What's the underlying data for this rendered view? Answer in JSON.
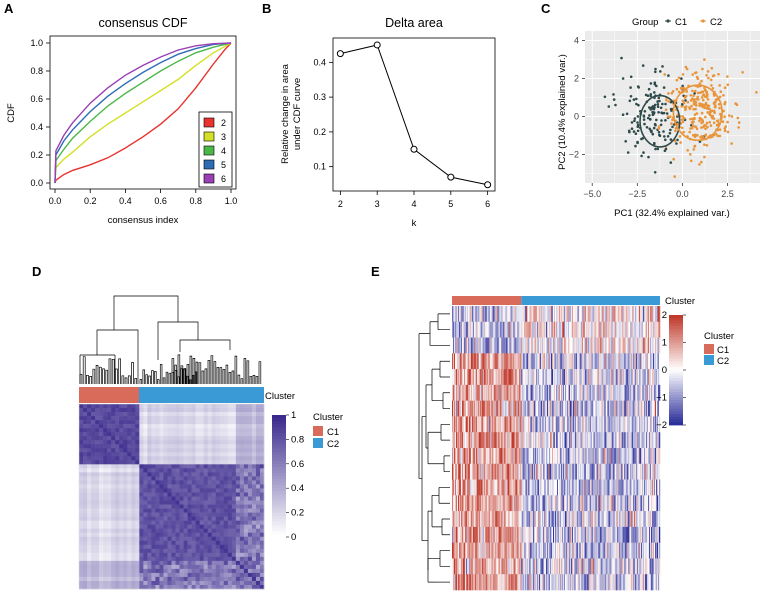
{
  "panels": {
    "A": "A",
    "B": "B",
    "C": "C",
    "D": "D",
    "E": "E"
  },
  "chart_data": [
    {
      "id": "A",
      "type": "line",
      "title": "consensus CDF",
      "xlabel": "consensus index",
      "ylabel": "CDF",
      "xlim": [
        0,
        1
      ],
      "ylim": [
        0,
        1
      ],
      "xticks": [
        "0.0",
        "0.2",
        "0.4",
        "0.6",
        "0.8",
        "1.0"
      ],
      "yticks": [
        "0.0",
        "0.2",
        "0.4",
        "0.6",
        "0.8",
        "1.0"
      ],
      "legend_position": "bottom-right",
      "series": [
        {
          "name": "2",
          "color": "#e8322e",
          "x": [
            0,
            0.005,
            0.05,
            0.1,
            0.2,
            0.3,
            0.4,
            0.5,
            0.6,
            0.7,
            0.8,
            0.9,
            0.97,
            1.0
          ],
          "y": [
            0,
            0.02,
            0.06,
            0.09,
            0.13,
            0.18,
            0.25,
            0.33,
            0.42,
            0.53,
            0.68,
            0.85,
            0.96,
            1.0
          ]
        },
        {
          "name": "3",
          "color": "#d4e026",
          "x": [
            0,
            0.005,
            0.05,
            0.1,
            0.2,
            0.3,
            0.4,
            0.5,
            0.6,
            0.7,
            0.8,
            0.9,
            1.0
          ],
          "y": [
            0,
            0.11,
            0.17,
            0.22,
            0.33,
            0.42,
            0.5,
            0.58,
            0.66,
            0.74,
            0.84,
            0.93,
            1.0
          ]
        },
        {
          "name": "4",
          "color": "#4cb748",
          "x": [
            0,
            0.005,
            0.05,
            0.1,
            0.2,
            0.3,
            0.4,
            0.5,
            0.6,
            0.7,
            0.8,
            0.9,
            1.0
          ],
          "y": [
            0,
            0.16,
            0.24,
            0.32,
            0.44,
            0.55,
            0.64,
            0.72,
            0.8,
            0.87,
            0.93,
            0.97,
            1.0
          ]
        },
        {
          "name": "5",
          "color": "#2e6db4",
          "x": [
            0,
            0.005,
            0.05,
            0.1,
            0.2,
            0.3,
            0.4,
            0.5,
            0.6,
            0.7,
            0.8,
            0.9,
            1.0
          ],
          "y": [
            0,
            0.2,
            0.3,
            0.38,
            0.51,
            0.62,
            0.71,
            0.79,
            0.86,
            0.92,
            0.96,
            0.99,
            1.0
          ]
        },
        {
          "name": "6",
          "color": "#9b3fb5",
          "x": [
            0,
            0.005,
            0.05,
            0.1,
            0.2,
            0.3,
            0.4,
            0.5,
            0.6,
            0.7,
            0.8,
            0.9,
            1.0
          ],
          "y": [
            0,
            0.23,
            0.34,
            0.43,
            0.57,
            0.68,
            0.77,
            0.84,
            0.9,
            0.95,
            0.98,
            0.995,
            1.0
          ]
        }
      ]
    },
    {
      "id": "B",
      "type": "line",
      "title": "Delta area",
      "xlabel": "k",
      "ylabel": "Relative change in area under CDF curve",
      "ylabel_lines": [
        "Relative change in area",
        "under CDF curve"
      ],
      "xlim": [
        1.8,
        6.2
      ],
      "ylim": [
        0.03,
        0.47
      ],
      "xticks": [
        "2",
        "3",
        "4",
        "5",
        "6"
      ],
      "yticks": [
        "0.1",
        "0.2",
        "0.3",
        "0.4"
      ],
      "x": [
        2,
        3,
        4,
        5,
        6
      ],
      "y": [
        0.425,
        0.45,
        0.15,
        0.07,
        0.048
      ]
    },
    {
      "id": "C",
      "type": "scatter",
      "xlabel": "PC1 (32.4% explained var.)",
      "ylabel": "PC2 (10.4% explained var.)",
      "xlim": [
        -5.4,
        4.3
      ],
      "ylim": [
        -3.5,
        4.5
      ],
      "xticks": [
        "-5.0",
        "-2.5",
        "0.0",
        "2.5"
      ],
      "yticks": [
        "-2",
        "0",
        "2",
        "4"
      ],
      "legend_title": "Group",
      "legend_position": "top",
      "series": [
        {
          "name": "C1",
          "color": "#2f4a4a",
          "n": 160,
          "center": [
            -1.6,
            0.0
          ],
          "spread": [
            1.0,
            1.0
          ]
        },
        {
          "name": "C2",
          "color": "#e8943a",
          "n": 300,
          "center": [
            1.0,
            0.3
          ],
          "spread": [
            0.95,
            1.05
          ]
        }
      ],
      "ellipses": [
        {
          "group": "C1",
          "center": [
            -1.25,
            -0.25
          ],
          "radii": [
            1.1,
            1.35
          ]
        },
        {
          "group": "C2",
          "center": [
            0.85,
            0.2
          ],
          "radii": [
            1.35,
            1.45
          ]
        }
      ]
    },
    {
      "id": "D",
      "type": "heatmap",
      "annotation_label": "Cluster",
      "legend_title": "Cluster",
      "legend_items": [
        {
          "name": "C1",
          "color": "#d96b5b"
        },
        {
          "name": "C2",
          "color": "#3a9ad6"
        }
      ],
      "colorbar_ticks": [
        "1",
        "0.8",
        "0.6",
        "0.4",
        "0.2",
        "0"
      ],
      "colorbar_range": [
        0,
        1
      ],
      "colors": {
        "high": "#3b2a8c",
        "low": "#ffffff"
      },
      "cluster_sizes": [
        60,
        125
      ]
    },
    {
      "id": "E",
      "type": "heatmap",
      "annotation_label": "Cluster",
      "legend_title": "Cluster",
      "legend_items": [
        {
          "name": "C1",
          "color": "#d96b5b"
        },
        {
          "name": "C2",
          "color": "#3a9ad6"
        }
      ],
      "colorbar_ticks": [
        "2",
        "1",
        "0",
        "−1",
        "−2"
      ],
      "colorbar_range": [
        -2,
        2
      ],
      "colors": {
        "high": "#c0392b",
        "mid": "#ffffff",
        "low": "#2c2f9a"
      },
      "cluster_sizes": [
        70,
        140
      ],
      "gene_rows": 18
    }
  ]
}
